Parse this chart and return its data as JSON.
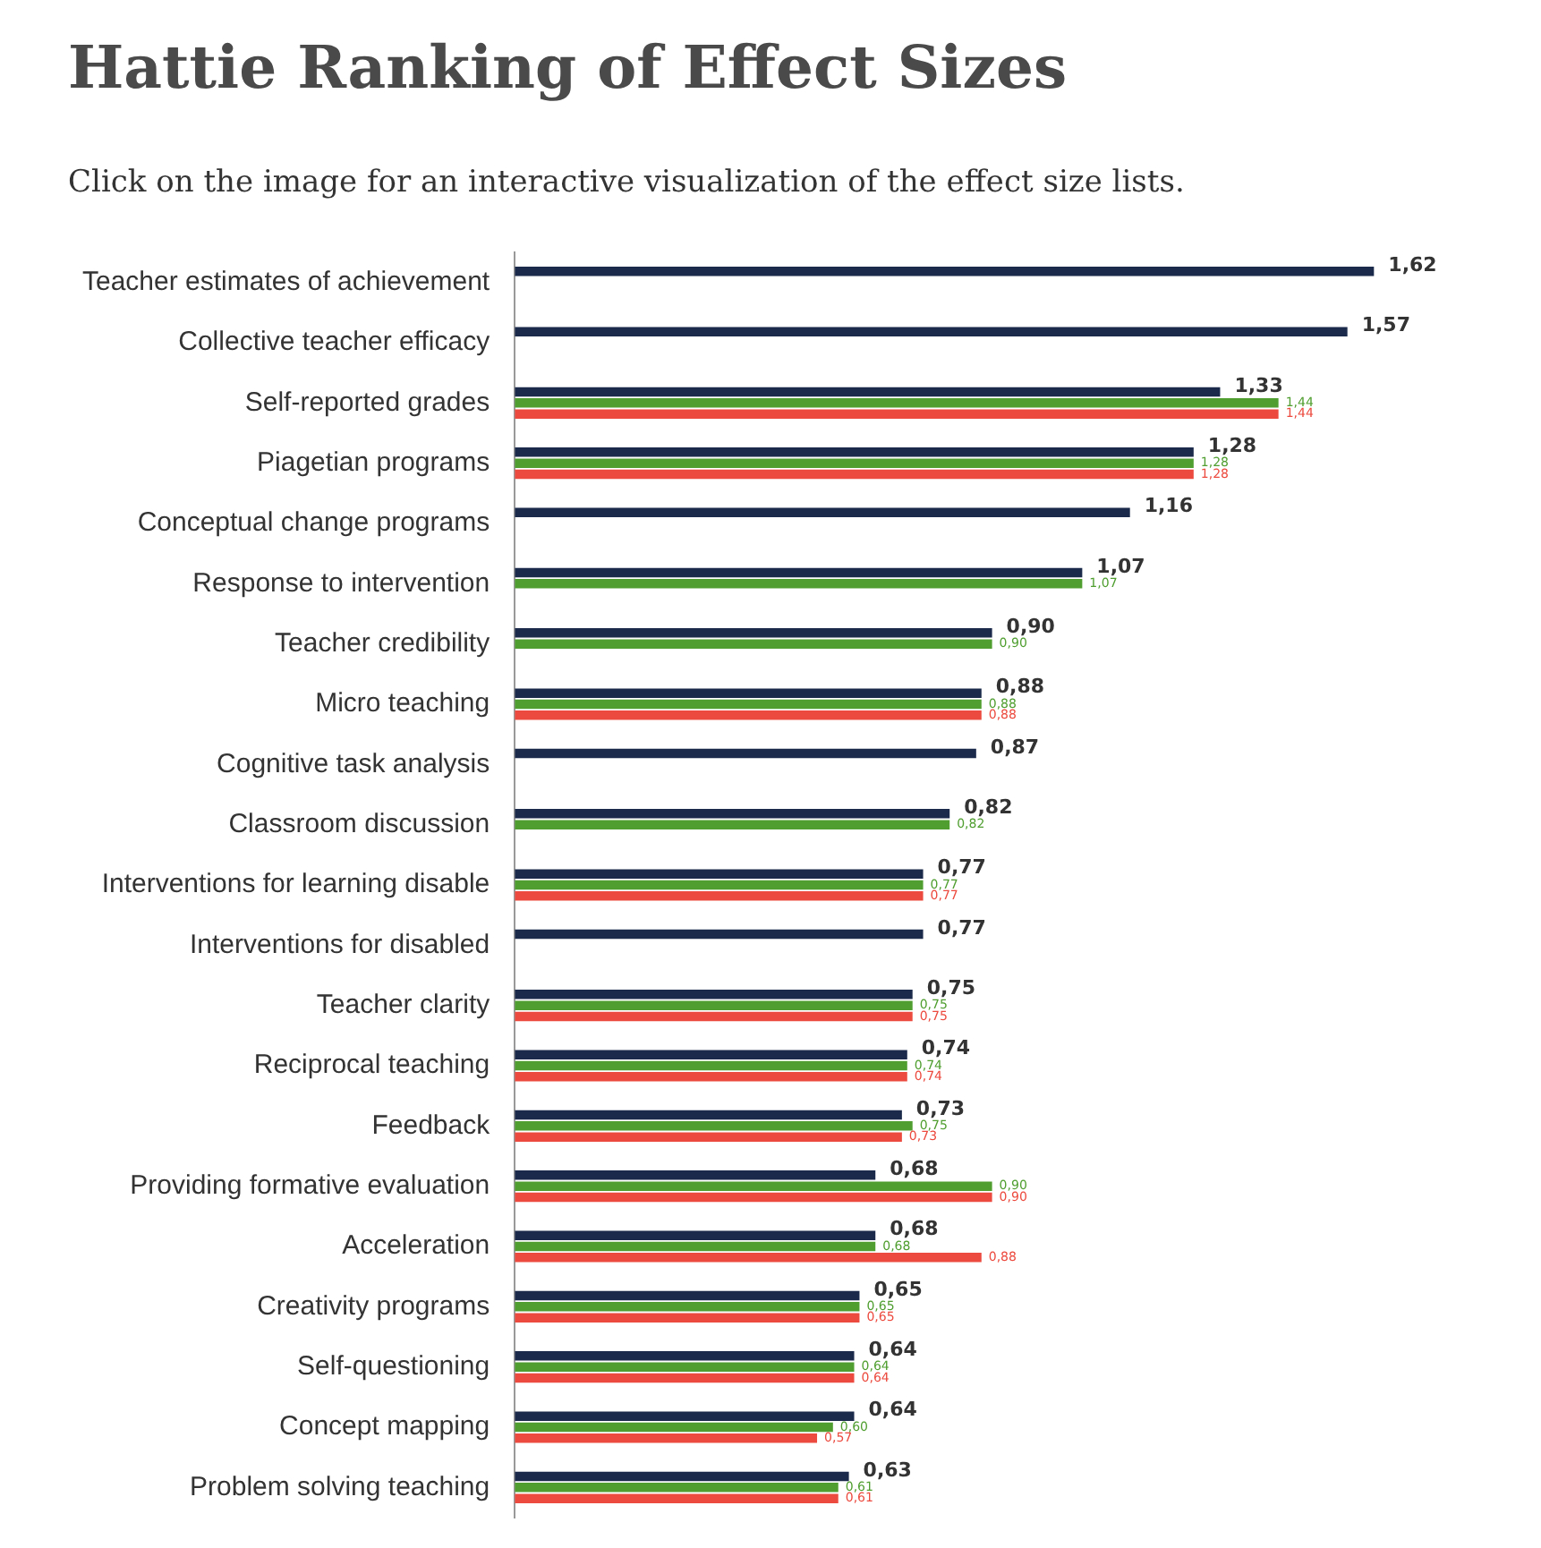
{
  "chart_data": {
    "type": "bar",
    "orientation": "horizontal",
    "title": "Hattie Ranking of Effect Sizes",
    "subtitle": "Click on the image for an interactive visualization of the effect size lists.",
    "categories": [
      "Teacher estimates of achievement",
      "Collective teacher efficacy",
      "Self-reported grades",
      "Piagetian programs",
      "Conceptual change programs",
      "Response to intervention",
      "Teacher credibility",
      "Micro teaching",
      "Cognitive task analysis",
      "Classroom discussion",
      "Interventions for learning disable",
      "Interventions for disabled",
      "Teacher clarity",
      "Reciprocal teaching",
      "Feedback",
      "Providing formative evaluation",
      "Acceleration",
      "Creativity programs",
      "Self-questioning",
      "Concept mapping",
      "Problem solving teaching"
    ],
    "series": [
      {
        "color": "#1b2a4a",
        "values": [
          1.62,
          1.57,
          1.33,
          1.28,
          1.16,
          1.07,
          0.9,
          0.88,
          0.87,
          0.82,
          0.77,
          0.77,
          0.75,
          0.74,
          0.73,
          0.68,
          0.68,
          0.65,
          0.64,
          0.64,
          0.63
        ],
        "value_labels": [
          "1,62",
          "1,57",
          "1,33",
          "1,28",
          "1,16",
          "1,07",
          "0,90",
          "0,88",
          "0,87",
          "0,82",
          "0,77",
          "0,77",
          "0,75",
          "0,74",
          "0,73",
          "0,68",
          "0,68",
          "0,65",
          "0,64",
          "0,64",
          "0,63"
        ]
      },
      {
        "color": "#4f9e2f",
        "values": [
          null,
          null,
          1.44,
          1.28,
          null,
          1.07,
          0.9,
          0.88,
          null,
          0.82,
          0.77,
          null,
          0.75,
          0.74,
          0.75,
          0.9,
          0.68,
          0.65,
          0.64,
          0.6,
          0.61
        ],
        "value_labels": [
          null,
          null,
          "1,44",
          "1,28",
          null,
          "1,07",
          "0,90",
          "0,88",
          null,
          "0,82",
          "0,77",
          null,
          "0,75",
          "0,74",
          "0,75",
          "0,90",
          "0,68",
          "0,65",
          "0,64",
          "0,60",
          "0,61"
        ]
      },
      {
        "color": "#ec4a3e",
        "values": [
          null,
          null,
          1.44,
          1.28,
          null,
          null,
          null,
          0.88,
          null,
          null,
          0.77,
          null,
          0.75,
          0.74,
          0.73,
          0.9,
          0.88,
          0.65,
          0.64,
          0.57,
          0.61
        ],
        "value_labels": [
          null,
          null,
          "1,44",
          "1,28",
          null,
          null,
          null,
          "0,88",
          null,
          null,
          "0,77",
          null,
          "0,75",
          "0,74",
          "0,73",
          "0,90",
          "0,88",
          "0,65",
          "0,64",
          "0,57",
          "0,61"
        ]
      }
    ],
    "tick_labels": "y",
    "grid": false,
    "legend": false
  }
}
